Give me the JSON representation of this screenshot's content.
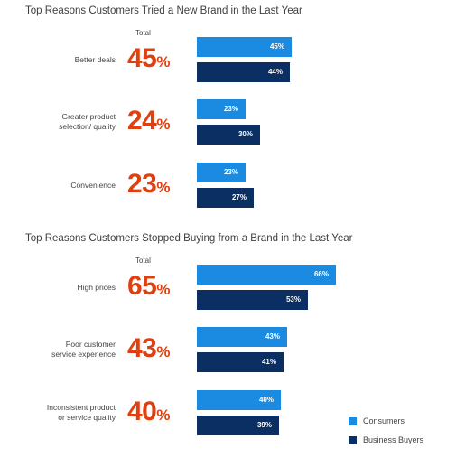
{
  "colors": {
    "consumers": "#1a8be0",
    "business_buyers": "#0b2e63",
    "total": "#e0400f"
  },
  "legend": {
    "consumers": "Consumers",
    "business_buyers": "Business Buyers"
  },
  "chart_data": [
    {
      "type": "bar",
      "orientation": "horizontal",
      "title": "Top Reasons Customers Tried a New Brand in the Last Year",
      "total_header": "Total",
      "categories": [
        "Better deals",
        "Greater product selection/ quality",
        "Convenience"
      ],
      "category_lines": [
        [
          "Better deals"
        ],
        [
          "Greater product",
          "selection/ quality"
        ],
        [
          "Convenience"
        ]
      ],
      "totals": [
        "45",
        "24",
        "23"
      ],
      "series": [
        {
          "name": "Consumers",
          "values": [
            45,
            23,
            23
          ]
        },
        {
          "name": "Business Buyers",
          "values": [
            44,
            30,
            27
          ]
        }
      ],
      "value_suffix": "%",
      "xlim": [
        0,
        100
      ],
      "legend": "bottom-right"
    },
    {
      "type": "bar",
      "orientation": "horizontal",
      "title": "Top Reasons Customers Stopped Buying from a Brand in the Last Year",
      "total_header": "Total",
      "categories": [
        "High prices",
        "Poor customer service experience",
        "Inconsistent product or service quality"
      ],
      "category_lines": [
        [
          "High prices"
        ],
        [
          "Poor customer",
          "service experience"
        ],
        [
          "Inconsistent product",
          "or service quality"
        ]
      ],
      "totals": [
        "65",
        "43",
        "40"
      ],
      "series": [
        {
          "name": "Consumers",
          "values": [
            66,
            43,
            40
          ]
        },
        {
          "name": "Business Buyers",
          "values": [
            53,
            41,
            39
          ]
        }
      ],
      "value_suffix": "%",
      "xlim": [
        0,
        100
      ],
      "legend": "bottom-right"
    }
  ]
}
